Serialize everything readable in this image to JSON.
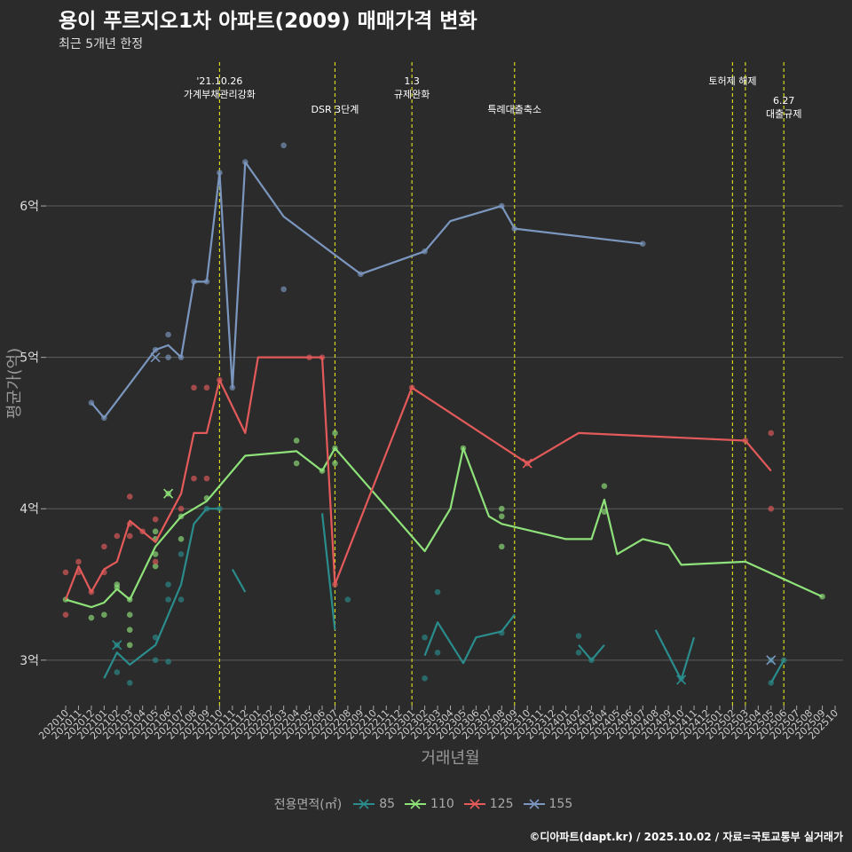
{
  "title": "용이 푸르지오1차 아파트(2009) 매매가격 변화",
  "subtitle": "최근 5개년 한정",
  "caption": "©디아파트(dapt.kr) / 2025.10.02 / 자료=국토교통부 실거래가",
  "chart_data": {
    "type": "line",
    "xlabel": "거래년월",
    "ylabel": "평균가(억)",
    "ylim": [
      2.7,
      6.95
    ],
    "yticks": [
      3,
      4,
      5,
      6
    ],
    "ytick_labels": [
      "3억",
      "4억",
      "5억",
      "6억"
    ],
    "x_start": "2020-10",
    "x_end": "2025-10",
    "x_tick_labels": [
      "202010",
      "202011",
      "202012",
      "202101",
      "202102",
      "202103",
      "202104",
      "202105",
      "202106",
      "202107",
      "202108",
      "202109",
      "202110",
      "202111",
      "202112",
      "202201",
      "202202",
      "202203",
      "202204",
      "202205",
      "202206",
      "202207",
      "202208",
      "202209",
      "202210",
      "202211",
      "202212",
      "202301",
      "202302",
      "202303",
      "202304",
      "202305",
      "202306",
      "202307",
      "202308",
      "202309",
      "202310",
      "202311",
      "202312",
      "202401",
      "202402",
      "202403",
      "202404",
      "202405",
      "202406",
      "202407",
      "202408",
      "202409",
      "202410",
      "202411",
      "202412",
      "202501",
      "202502",
      "202503",
      "202504",
      "202505",
      "202506",
      "202507",
      "202508",
      "202509",
      "202510"
    ],
    "legend_title": "전용면적(㎡)",
    "vlines": [
      {
        "month": "2021-10",
        "label": [
          "'21.10.26",
          "가계부채관리강화"
        ],
        "row": "a"
      },
      {
        "month": "2022-07",
        "label": [
          "DSR 3단계"
        ],
        "row": "b"
      },
      {
        "month": "2023-01",
        "label": [
          "1.3",
          "규제완화"
        ],
        "row": "a"
      },
      {
        "month": "2023-09",
        "label": [
          "특례대출축소"
        ],
        "row": "b"
      },
      {
        "month": "2025-02",
        "label": [
          "토허제 해제"
        ],
        "row": "a"
      },
      {
        "month": "2025-03",
        "label": [],
        "row": "a"
      },
      {
        "month": "2025-06",
        "label": [
          "6.27",
          "대출규제"
        ],
        "row": "c"
      }
    ],
    "series": [
      {
        "name": "85",
        "color": "#2a8c8c",
        "line": [
          [
            [
              "2021-01",
              2.88
            ],
            [
              "2021-02",
              3.05
            ],
            [
              "2021-03",
              2.97
            ],
            [
              "2021-05",
              3.1
            ],
            [
              "2021-07",
              3.5
            ],
            [
              "2021-08",
              3.9
            ],
            [
              "2021-09",
              4.0
            ],
            [
              "2021-10",
              4.0
            ]
          ],
          [
            [
              "2021-11",
              3.6
            ],
            [
              "2021-12",
              3.45
            ]
          ],
          [
            [
              "2022-06",
              3.97
            ],
            [
              "2022-07",
              3.2
            ]
          ],
          [
            [
              "2023-02",
              3.03
            ],
            [
              "2023-03",
              3.25
            ],
            [
              "2023-05",
              2.98
            ],
            [
              "2023-06",
              3.15
            ],
            [
              "2023-07",
              3.17
            ],
            [
              "2023-08",
              3.19
            ],
            [
              "2023-09",
              3.3
            ]
          ],
          [
            [
              "2024-02",
              3.1
            ],
            [
              "2024-03",
              3.0
            ],
            [
              "2024-04",
              3.1
            ]
          ],
          [
            [
              "2024-08",
              3.2
            ],
            [
              "2024-10",
              2.87
            ],
            [
              "2024-11",
              3.15
            ]
          ],
          [
            [
              "2025-05",
              2.85
            ],
            [
              "2025-06",
              3.0
            ]
          ]
        ],
        "points": [
          [
            "2021-02",
            3.1
          ],
          [
            "2021-02",
            2.92
          ],
          [
            "2021-03",
            2.85
          ],
          [
            "2021-05",
            3.0
          ],
          [
            "2021-05",
            3.15
          ],
          [
            "2021-06",
            2.99
          ],
          [
            "2021-06",
            3.5
          ],
          [
            "2021-06",
            3.4
          ],
          [
            "2021-07",
            3.7
          ],
          [
            "2021-07",
            3.4
          ],
          [
            "2021-09",
            4.0
          ],
          [
            "2021-10",
            4.0
          ],
          [
            "2022-08",
            3.4
          ],
          [
            "2023-02",
            2.88
          ],
          [
            "2023-02",
            3.15
          ],
          [
            "2023-03",
            3.45
          ],
          [
            "2023-03",
            3.05
          ],
          [
            "2023-08",
            3.18
          ],
          [
            "2024-02",
            3.16
          ],
          [
            "2024-02",
            3.05
          ],
          [
            "2024-03",
            3.0
          ],
          [
            "2024-10",
            2.88
          ],
          [
            "2025-05",
            3.0
          ],
          [
            "2025-05",
            2.85
          ],
          [
            "2025-06",
            3.0
          ]
        ],
        "crosses": [
          [
            "2021-02",
            3.1
          ],
          [
            "2024-10",
            2.87
          ]
        ]
      },
      {
        "name": "110",
        "color": "#8fe27a",
        "line": [
          [
            [
              "2020-10",
              3.4
            ],
            [
              "2020-12",
              3.35
            ],
            [
              "2021-01",
              3.38
            ],
            [
              "2021-02",
              3.47
            ],
            [
              "2021-03",
              3.4
            ],
            [
              "2021-05",
              3.75
            ],
            [
              "2021-07",
              3.95
            ],
            [
              "2021-09",
              4.05
            ],
            [
              "2021-12",
              4.35
            ],
            [
              "2022-04",
              4.38
            ],
            [
              "2022-06",
              4.25
            ],
            [
              "2022-07",
              4.4
            ],
            [
              "2023-02",
              3.72
            ],
            [
              "2023-04",
              4.0
            ],
            [
              "2023-05",
              4.4
            ],
            [
              "2023-07",
              3.95
            ],
            [
              "2023-08",
              3.9
            ],
            [
              "2024-01",
              3.8
            ],
            [
              "2024-03",
              3.8
            ],
            [
              "2024-04",
              4.06
            ],
            [
              "2024-05",
              3.7
            ],
            [
              "2024-07",
              3.8
            ],
            [
              "2024-09",
              3.76
            ],
            [
              "2024-10",
              3.63
            ],
            [
              "2025-03",
              3.65
            ],
            [
              "2025-09",
              3.42
            ]
          ]
        ],
        "points": [
          [
            "2020-10",
            3.4
          ],
          [
            "2020-12",
            3.28
          ],
          [
            "2021-01",
            3.3
          ],
          [
            "2021-02",
            3.5
          ],
          [
            "2021-02",
            3.48
          ],
          [
            "2021-03",
            3.4
          ],
          [
            "2021-03",
            3.3
          ],
          [
            "2021-03",
            3.2
          ],
          [
            "2021-03",
            3.1
          ],
          [
            "2021-05",
            3.85
          ],
          [
            "2021-05",
            3.7
          ],
          [
            "2021-05",
            3.62
          ],
          [
            "2021-05",
            3.8
          ],
          [
            "2021-06",
            4.1
          ],
          [
            "2021-07",
            3.95
          ],
          [
            "2021-07",
            3.8
          ],
          [
            "2021-09",
            4.07
          ],
          [
            "2022-04",
            4.45
          ],
          [
            "2022-04",
            4.3
          ],
          [
            "2022-06",
            4.25
          ],
          [
            "2022-07",
            4.5
          ],
          [
            "2022-07",
            4.3
          ],
          [
            "2022-07",
            4.4
          ],
          [
            "2023-05",
            4.4
          ],
          [
            "2023-08",
            4.0
          ],
          [
            "2023-08",
            3.95
          ],
          [
            "2023-08",
            3.75
          ],
          [
            "2024-04",
            4.15
          ],
          [
            "2024-04",
            3.98
          ],
          [
            "2025-09",
            3.42
          ]
        ],
        "crosses": [
          [
            "2021-06",
            4.1
          ]
        ]
      },
      {
        "name": "125",
        "color": "#e45a5a",
        "line": [
          [
            [
              "2020-10",
              3.4
            ],
            [
              "2020-11",
              3.62
            ],
            [
              "2020-12",
              3.45
            ],
            [
              "2021-01",
              3.6
            ],
            [
              "2021-02",
              3.65
            ],
            [
              "2021-03",
              3.92
            ],
            [
              "2021-04",
              3.85
            ],
            [
              "2021-05",
              3.78
            ],
            [
              "2021-07",
              4.1
            ],
            [
              "2021-08",
              4.5
            ],
            [
              "2021-09",
              4.5
            ],
            [
              "2021-10",
              4.85
            ],
            [
              "2021-12",
              4.5
            ],
            [
              "2022-01",
              5.0
            ],
            [
              "2022-05",
              5.0
            ],
            [
              "2022-06",
              5.0
            ],
            [
              "2022-07",
              3.5
            ],
            [
              "2023-01",
              4.8
            ],
            [
              "2023-10",
              4.3
            ],
            [
              "2024-02",
              4.5
            ],
            [
              "2025-03",
              4.45
            ],
            [
              "2025-05",
              4.25
            ]
          ]
        ],
        "points": [
          [
            "2020-10",
            3.58
          ],
          [
            "2020-10",
            3.3
          ],
          [
            "2020-11",
            3.65
          ],
          [
            "2020-11",
            3.58
          ],
          [
            "2020-12",
            3.45
          ],
          [
            "2021-01",
            3.75
          ],
          [
            "2021-01",
            3.58
          ],
          [
            "2021-02",
            3.82
          ],
          [
            "2021-03",
            4.08
          ],
          [
            "2021-03",
            3.82
          ],
          [
            "2021-03",
            3.9
          ],
          [
            "2021-04",
            3.85
          ],
          [
            "2021-05",
            3.93
          ],
          [
            "2021-05",
            3.65
          ],
          [
            "2021-07",
            4.0
          ],
          [
            "2021-08",
            4.8
          ],
          [
            "2021-08",
            4.2
          ],
          [
            "2021-09",
            4.8
          ],
          [
            "2021-09",
            4.2
          ],
          [
            "2021-10",
            4.85
          ],
          [
            "2022-05",
            5.0
          ],
          [
            "2022-06",
            5.0
          ],
          [
            "2022-07",
            3.5
          ],
          [
            "2023-01",
            4.8
          ],
          [
            "2023-10",
            4.3
          ],
          [
            "2025-03",
            4.45
          ],
          [
            "2025-05",
            4.5
          ],
          [
            "2025-05",
            4.0
          ]
        ],
        "crosses": [
          [
            "2023-10",
            4.3
          ]
        ]
      },
      {
        "name": "155",
        "color": "#7b97bf",
        "line": [
          [
            [
              "2021-12",
              6.29
            ],
            [
              "2022-03",
              5.93
            ],
            [
              "2022-09",
              5.55
            ],
            [
              "2023-02",
              5.7
            ],
            [
              "2023-04",
              5.9
            ],
            [
              "2023-08",
              6.0
            ],
            [
              "2023-09",
              5.85
            ],
            [
              "2024-07",
              5.75
            ]
          ],
          [
            [
              "2020-12",
              4.7
            ],
            [
              "2021-01",
              4.6
            ],
            [
              "2021-05",
              5.05
            ],
            [
              "2021-06",
              5.08
            ],
            [
              "2021-07",
              5.0
            ],
            [
              "2021-08",
              5.5
            ],
            [
              "2021-09",
              5.5
            ],
            [
              "2021-10",
              6.22
            ],
            [
              "2021-11",
              4.8
            ],
            [
              "2021-12",
              6.29
            ]
          ]
        ],
        "points": [
          [
            "2020-12",
            4.7
          ],
          [
            "2021-01",
            4.6
          ],
          [
            "2021-05",
            5.05
          ],
          [
            "2021-06",
            5.15
          ],
          [
            "2021-06",
            5.0
          ],
          [
            "2021-07",
            5.0
          ],
          [
            "2021-08",
            5.5
          ],
          [
            "2021-09",
            5.5
          ],
          [
            "2021-10",
            6.22
          ],
          [
            "2021-11",
            4.8
          ],
          [
            "2021-12",
            6.29
          ],
          [
            "2022-03",
            6.4
          ],
          [
            "2022-03",
            5.45
          ],
          [
            "2022-09",
            5.55
          ],
          [
            "2023-02",
            5.7
          ],
          [
            "2023-08",
            6.0
          ],
          [
            "2023-09",
            5.85
          ],
          [
            "2024-07",
            5.75
          ]
        ],
        "crosses": [
          [
            "2021-05",
            5.0
          ],
          [
            "2025-05",
            3.0
          ]
        ]
      }
    ]
  }
}
